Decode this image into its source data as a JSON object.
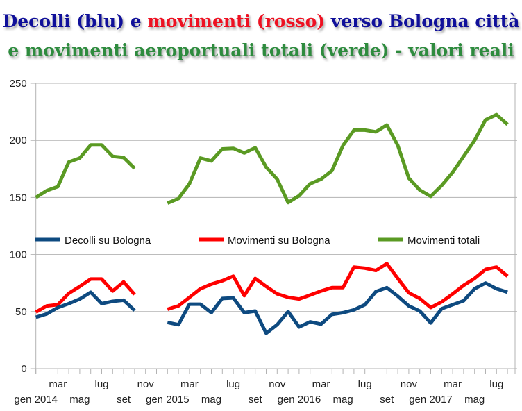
{
  "title": {
    "line1": [
      {
        "text": "Decolli (blu) e ",
        "color": "#10109a"
      },
      {
        "text": "movimenti (rosso)",
        "color": "#ee1122"
      },
      {
        "text": " verso Bologna città",
        "color": "#10109a"
      }
    ],
    "line2": [
      {
        "text": "e movimenti aeroportuali totali (verde) - valori reali",
        "color": "#2e8b3e"
      }
    ]
  },
  "chart_data": {
    "type": "line",
    "title": "Decolli (blu) e movimenti (rosso) verso Bologna città e movimenti aeroportuali totali (verde) - valori reali",
    "xlabel": "",
    "ylabel": "",
    "ylim": [
      0,
      250
    ],
    "yticks": [
      0,
      50,
      100,
      150,
      200,
      250
    ],
    "grid": true,
    "legend_placement": "center",
    "x": [
      "gen 2014",
      "feb 2014",
      "mar 2014",
      "apr 2014",
      "mag 2014",
      "giu 2014",
      "lug 2014",
      "ago 2014",
      "set 2014",
      "ott 2014",
      "nov 2014",
      "dic 2014",
      "gen 2015",
      "feb 2015",
      "mar 2015",
      "apr 2015",
      "mag 2015",
      "giu 2015",
      "lug 2015",
      "ago 2015",
      "set 2015",
      "ott 2015",
      "nov 2015",
      "dic 2015",
      "gen 2016",
      "feb 2016",
      "mar 2016",
      "apr 2016",
      "mag 2016",
      "giu 2016",
      "lug 2016",
      "ago 2016",
      "set 2016",
      "ott 2016",
      "nov 2016",
      "dic 2016",
      "gen 2017",
      "feb 2017",
      "mar 2017",
      "apr 2017",
      "mag 2017",
      "giu 2017",
      "lug 2017",
      "ago 2017"
    ],
    "xtick_labels": [
      {
        "i": 0,
        "label": "gen 2014",
        "row": 2
      },
      {
        "i": 2,
        "label": "mar",
        "row": 1
      },
      {
        "i": 4,
        "label": "mag",
        "row": 2
      },
      {
        "i": 6,
        "label": "lug",
        "row": 1
      },
      {
        "i": 8,
        "label": "set",
        "row": 2
      },
      {
        "i": 10,
        "label": "nov",
        "row": 1
      },
      {
        "i": 12,
        "label": "gen 2015",
        "row": 2
      },
      {
        "i": 14,
        "label": "mar",
        "row": 1
      },
      {
        "i": 16,
        "label": "mag",
        "row": 2
      },
      {
        "i": 18,
        "label": "lug",
        "row": 1
      },
      {
        "i": 20,
        "label": "set",
        "row": 2
      },
      {
        "i": 22,
        "label": "nov",
        "row": 1
      },
      {
        "i": 24,
        "label": "gen 2016",
        "row": 2
      },
      {
        "i": 26,
        "label": "mar",
        "row": 1
      },
      {
        "i": 28,
        "label": "mag",
        "row": 2
      },
      {
        "i": 30,
        "label": "lug",
        "row": 1
      },
      {
        "i": 32,
        "label": "set",
        "row": 2
      },
      {
        "i": 34,
        "label": "nov",
        "row": 1
      },
      {
        "i": 36,
        "label": "gen 2017",
        "row": 2
      },
      {
        "i": 38,
        "label": "mar",
        "row": 1
      },
      {
        "i": 40,
        "label": "mag",
        "row": 2
      },
      {
        "i": 42,
        "label": "lug",
        "row": 1
      }
    ],
    "series": [
      {
        "name": "Decolli su Bologna",
        "color": "#0e4a80",
        "values": [
          45,
          48,
          53.5,
          57,
          61,
          67,
          57,
          59,
          60,
          51,
          null,
          null,
          40.5,
          38.5,
          56.5,
          56.5,
          49,
          61.5,
          62,
          49,
          50.5,
          31,
          38.5,
          50,
          36.5,
          41,
          39,
          47.5,
          49,
          51.5,
          56,
          67.5,
          71,
          63.5,
          55,
          50.5,
          40,
          52.5,
          56,
          59.5,
          70,
          75,
          70,
          67
        ]
      },
      {
        "name": "Movimenti su Bologna",
        "color": "#ff0000",
        "values": [
          49.5,
          55,
          56,
          66,
          72,
          78.5,
          78.5,
          68,
          76,
          65,
          null,
          null,
          52,
          55,
          62.5,
          70,
          74,
          77,
          81,
          64,
          79,
          72,
          65.5,
          62.5,
          61,
          64.5,
          68,
          71,
          71,
          89,
          88,
          86,
          92,
          79,
          66.5,
          61.5,
          53.5,
          58.5,
          65.5,
          73,
          79,
          87,
          89,
          81
        ]
      },
      {
        "name": "Movimenti totali",
        "color": "#5a9a23",
        "values": [
          150,
          156,
          159.5,
          181,
          184.5,
          196,
          196,
          186,
          185,
          175.5,
          null,
          null,
          145,
          149,
          162,
          184.5,
          182,
          192.5,
          193,
          189,
          193.5,
          176.5,
          166,
          145.5,
          151.5,
          162,
          166,
          173.5,
          195.5,
          209,
          209,
          207.5,
          213.5,
          195.5,
          167,
          156.5,
          151,
          160.5,
          172,
          186,
          200,
          218,
          222.5,
          214
        ]
      }
    ]
  }
}
